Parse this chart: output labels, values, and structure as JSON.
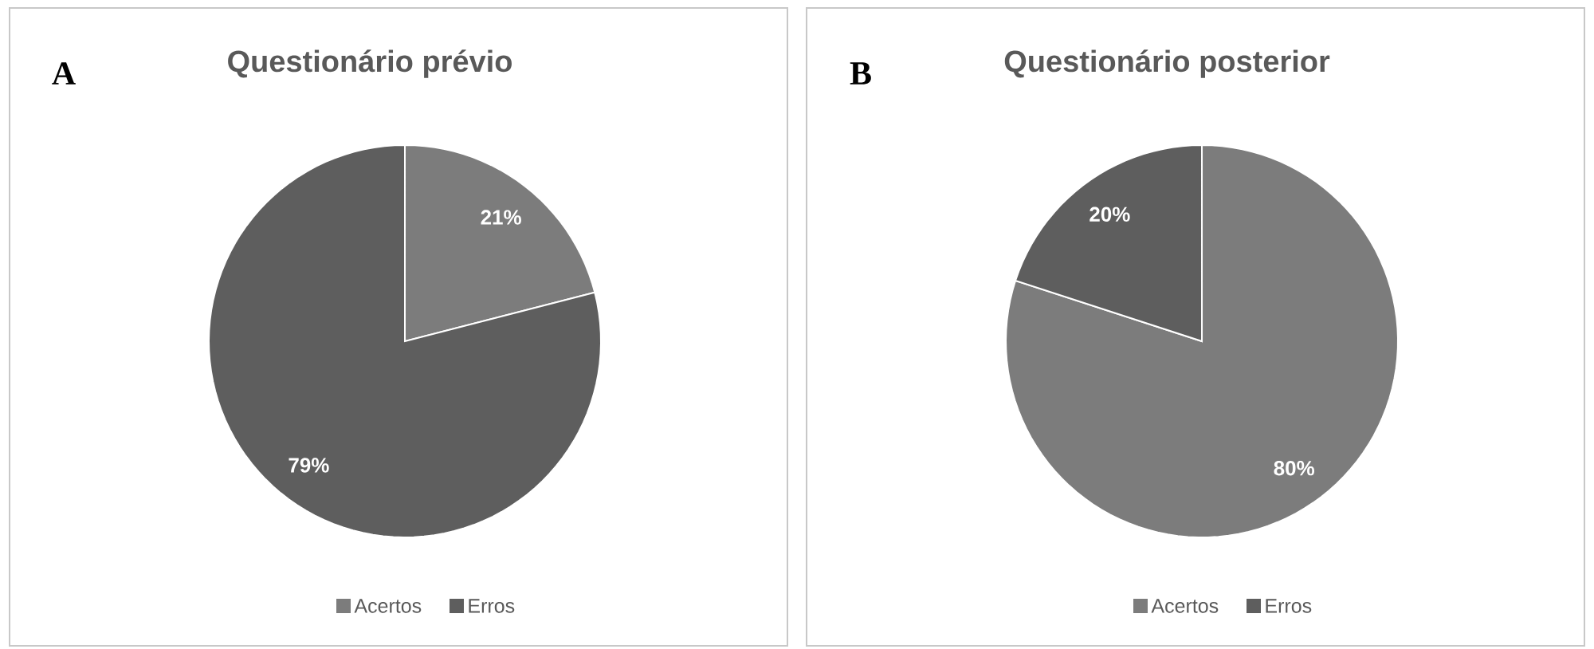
{
  "chart_data": [
    {
      "type": "pie",
      "title": "Questionário prévio",
      "annotations": [
        "A"
      ],
      "categories": [
        "Acertos",
        "Erros"
      ],
      "values": [
        21,
        79
      ],
      "value_labels": [
        "21%",
        "79%"
      ],
      "colors": [
        "#7c7c7c",
        "#5e5e5e"
      ],
      "legend": "bottom"
    },
    {
      "type": "pie",
      "title": "Questionário posterior",
      "annotations": [
        "B"
      ],
      "categories": [
        "Acertos",
        "Erros"
      ],
      "values": [
        80,
        20
      ],
      "value_labels": [
        "80%",
        "20%"
      ],
      "colors": [
        "#7c7c7c",
        "#5e5e5e"
      ],
      "legend": "bottom"
    }
  ]
}
